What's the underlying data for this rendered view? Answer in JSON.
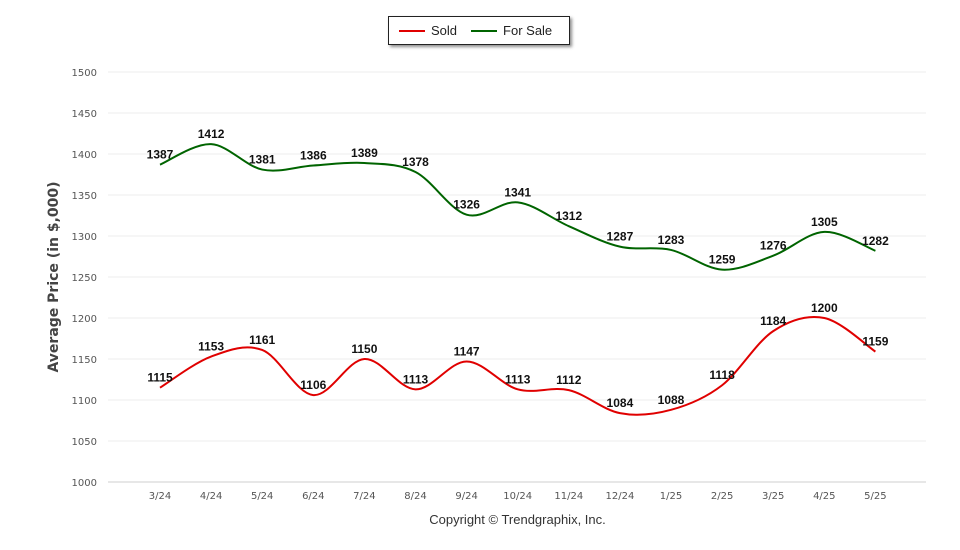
{
  "chart_data": {
    "type": "line",
    "title": "",
    "xlabel": "",
    "ylabel": "Average Price (in $,000)",
    "ylim": [
      1000,
      1500
    ],
    "yticks": [
      1000,
      1050,
      1100,
      1150,
      1200,
      1250,
      1300,
      1350,
      1400,
      1450,
      1500
    ],
    "grid": true,
    "legend_position": "top-center",
    "categories": [
      "3/24",
      "4/24",
      "5/24",
      "6/24",
      "7/24",
      "8/24",
      "9/24",
      "10/24",
      "11/24",
      "12/24",
      "1/25",
      "2/25",
      "3/25",
      "4/25",
      "5/25"
    ],
    "series": [
      {
        "name": "Sold",
        "color": "#e00000",
        "values": [
          1115,
          1153,
          1161,
          1106,
          1150,
          1113,
          1147,
          1113,
          1112,
          1084,
          1088,
          1118,
          1184,
          1200,
          1159
        ]
      },
      {
        "name": "For Sale",
        "color": "#006400",
        "values": [
          1387,
          1412,
          1381,
          1386,
          1389,
          1378,
          1326,
          1341,
          1312,
          1287,
          1283,
          1259,
          1276,
          1305,
          1282
        ]
      }
    ]
  },
  "copyright": "Copyright © Trendgraphix, Inc."
}
